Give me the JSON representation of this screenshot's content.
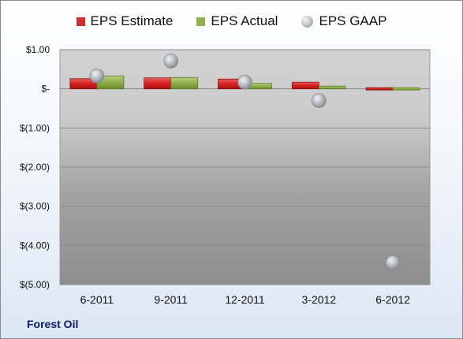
{
  "chart_data": {
    "type": "bar",
    "categories": [
      "6-2011",
      "9-2011",
      "12-2011",
      "3-2012",
      "6-2012"
    ],
    "series": [
      {
        "name": "EPS Estimate",
        "kind": "bar",
        "color": "#d62b2b",
        "values": [
          0.26,
          0.28,
          0.25,
          0.17,
          -0.04
        ]
      },
      {
        "name": "EPS Actual",
        "kind": "bar",
        "color": "#8fb04a",
        "values": [
          0.33,
          0.29,
          0.14,
          0.07,
          -0.04
        ]
      },
      {
        "name": "EPS GAAP",
        "kind": "scatter",
        "color": "#b4b8be",
        "values": [
          0.33,
          0.71,
          0.17,
          -0.3,
          -4.44
        ]
      }
    ],
    "ylim": [
      -5.0,
      1.0
    ],
    "yticks": [
      1.0,
      0.0,
      -1.0,
      -2.0,
      -3.0,
      -4.0,
      -5.0
    ],
    "ytick_labels": [
      "$1.00",
      "$-",
      "$(1.00)",
      "$(2.00)",
      "$(3.00)",
      "$(4.00)",
      "$(5.00)"
    ],
    "grid": true,
    "legend_position": "top"
  },
  "footer": {
    "company": "Forest Oil"
  }
}
